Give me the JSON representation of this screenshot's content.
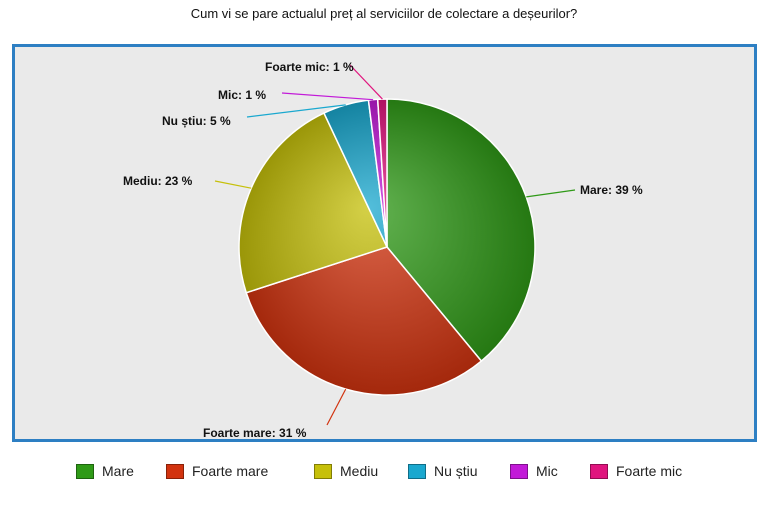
{
  "chart_data": {
    "type": "pie",
    "title": "Cum vi se pare actualul preț al serviciilor de colectare a deșeurilor?",
    "legend_position": "bottom",
    "slices": [
      {
        "name": "Mare",
        "value": 39,
        "label": "Mare: 39 %",
        "color": "#2f9a17"
      },
      {
        "name": "Foarte mare",
        "value": 31,
        "label": "Foarte mare: 31 %",
        "color": "#d2330f"
      },
      {
        "name": "Mediu",
        "value": 23,
        "label": "Mediu: 23 %",
        "color": "#c6c00a"
      },
      {
        "name": "Nu știu",
        "value": 5,
        "label": "Nu știu: 5 %",
        "color": "#1aa8cf"
      },
      {
        "name": "Mic",
        "value": 1,
        "label": "Mic: 1 %",
        "color": "#c21ad8"
      },
      {
        "name": "Foarte mic",
        "value": 1,
        "label": "Foarte mic: 1 %",
        "color": "#e0157e"
      }
    ]
  }
}
